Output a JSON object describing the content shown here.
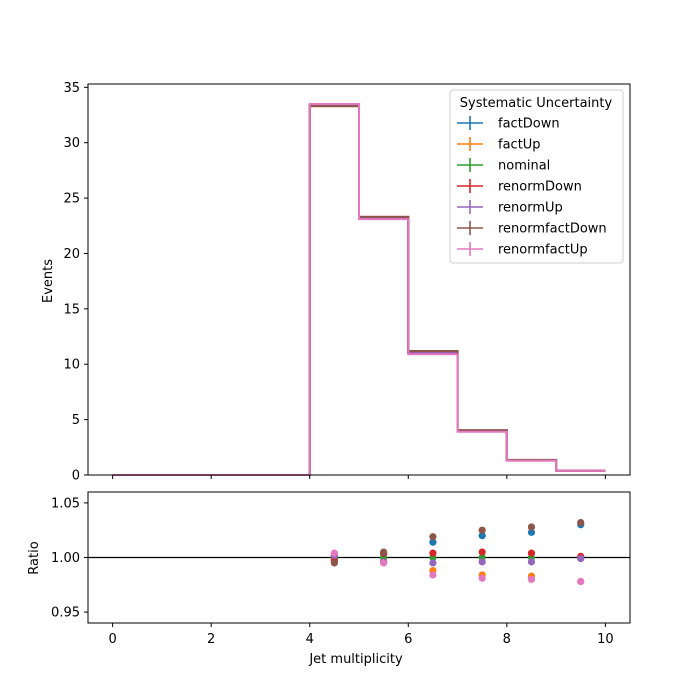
{
  "chart_data": [
    {
      "type": "line",
      "panel": "main",
      "drawstyle": "step",
      "xlabel": "",
      "ylabel": "Events",
      "xlim": [
        -0.5,
        10.5
      ],
      "ylim": [
        0,
        35.3
      ],
      "xticks": [
        0,
        2,
        4,
        6,
        8,
        10
      ],
      "yticks": [
        0,
        5,
        10,
        15,
        20,
        25,
        30,
        35
      ],
      "bin_edges": [
        0,
        1,
        2,
        3,
        4,
        5,
        6,
        7,
        8,
        9,
        10
      ],
      "legend": {
        "title": "Systematic Uncertainty",
        "placement": "top-right"
      },
      "series": [
        {
          "name": "factDown",
          "color": "#1f77b4",
          "values": [
            0,
            0,
            0,
            0,
            33.4,
            23.2,
            11.1,
            4.0,
            1.35,
            0.4
          ]
        },
        {
          "name": "factUp",
          "color": "#ff7f0e",
          "values": [
            0,
            0,
            0,
            0,
            33.4,
            23.2,
            11.0,
            3.95,
            1.3,
            0.38
          ]
        },
        {
          "name": "nominal",
          "color": "#2ca02c",
          "values": [
            0,
            0,
            0,
            0,
            33.4,
            23.2,
            11.05,
            3.97,
            1.33,
            0.39
          ]
        },
        {
          "name": "renormDown",
          "color": "#d62728",
          "values": [
            0,
            0,
            0,
            0,
            33.3,
            23.3,
            11.1,
            4.0,
            1.33,
            0.39
          ]
        },
        {
          "name": "renormUp",
          "color": "#9467bd",
          "values": [
            0,
            0,
            0,
            0,
            33.4,
            23.2,
            11.0,
            3.96,
            1.32,
            0.39
          ]
        },
        {
          "name": "renormfactDown",
          "color": "#8c564b",
          "values": [
            0,
            0,
            0,
            0,
            33.3,
            23.3,
            11.2,
            4.05,
            1.36,
            0.4
          ]
        },
        {
          "name": "renormfactUp",
          "color": "#e377c2",
          "values": [
            0,
            0,
            0,
            0,
            33.5,
            23.1,
            10.9,
            3.9,
            1.3,
            0.38
          ]
        }
      ]
    },
    {
      "type": "scatter",
      "panel": "ratio",
      "xlabel": "Jet multiplicity",
      "ylabel": "Ratio",
      "xlim": [
        -0.5,
        10.5
      ],
      "ylim": [
        0.94,
        1.06
      ],
      "xticks": [
        0,
        2,
        4,
        6,
        8,
        10
      ],
      "yticks": [
        0.95,
        1.0,
        1.05
      ],
      "ytick_labels": [
        "0.95",
        "1.00",
        "1.05"
      ],
      "reference_line": 1.0,
      "x": [
        4.5,
        5.5,
        6.5,
        7.5,
        8.5,
        9.5
      ],
      "series": [
        {
          "name": "factDown",
          "color": "#1f77b4",
          "values": [
            0.998,
            1.003,
            1.014,
            1.02,
            1.023,
            1.03
          ]
        },
        {
          "name": "factUp",
          "color": "#ff7f0e",
          "values": [
            1.002,
            0.997,
            0.988,
            0.984,
            0.983,
            0.978
          ]
        },
        {
          "name": "nominal",
          "color": "#2ca02c",
          "values": [
            1.0,
            1.0,
            1.0,
            1.0,
            1.0,
            1.0
          ]
        },
        {
          "name": "renormDown",
          "color": "#d62728",
          "values": [
            0.997,
            1.004,
            1.004,
            1.005,
            1.004,
            1.001
          ]
        },
        {
          "name": "renormUp",
          "color": "#9467bd",
          "values": [
            1.002,
            0.996,
            0.995,
            0.996,
            0.996,
            0.999
          ]
        },
        {
          "name": "renormfactDown",
          "color": "#8c564b",
          "values": [
            0.995,
            1.005,
            1.019,
            1.025,
            1.028,
            1.032
          ]
        },
        {
          "name": "renormfactUp",
          "color": "#e377c2",
          "values": [
            1.004,
            0.995,
            0.984,
            0.981,
            0.98,
            0.978
          ]
        }
      ]
    }
  ]
}
